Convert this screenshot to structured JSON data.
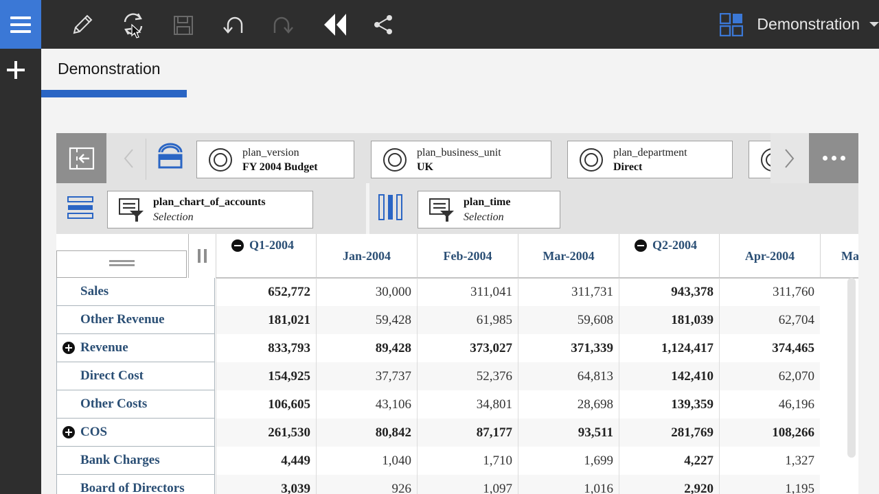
{
  "app": {
    "title": "Demonstration",
    "toolbar_icons": [
      "pencil-icon",
      "refresh-icon",
      "save-icon",
      "undo-icon",
      "redo-icon",
      "rewind-icon",
      "share-icon"
    ],
    "accent_color": "#3b78d6"
  },
  "page": {
    "tab_label": "Demonstration"
  },
  "filters": [
    {
      "name": "plan_version",
      "value": "FY 2004 Budget"
    },
    {
      "name": "plan_business_unit",
      "value": "UK"
    },
    {
      "name": "plan_department",
      "value": "Direct"
    }
  ],
  "rows_dimension": {
    "name": "plan_chart_of_accounts",
    "value": "Selection"
  },
  "columns_dimension": {
    "name": "plan_time",
    "value": "Selection"
  },
  "columns": [
    "Q1-2004",
    "Jan-2004",
    "Feb-2004",
    "Mar-2004",
    "Q2-2004",
    "Apr-2004",
    "Ma"
  ],
  "rows": [
    {
      "label": "Sales",
      "values": [
        "652,772",
        "30,000",
        "311,041",
        "311,731",
        "943,378",
        "311,760"
      ]
    },
    {
      "label": "Other Revenue",
      "values": [
        "181,021",
        "59,428",
        "61,985",
        "59,608",
        "181,039",
        "62,704"
      ]
    },
    {
      "label": "Revenue",
      "values": [
        "833,793",
        "89,428",
        "373,027",
        "371,339",
        "1,124,417",
        "374,465"
      ]
    },
    {
      "label": "Direct Cost",
      "values": [
        "154,925",
        "37,737",
        "52,376",
        "64,813",
        "142,410",
        "62,070"
      ]
    },
    {
      "label": "Other Costs",
      "values": [
        "106,605",
        "43,106",
        "34,801",
        "28,698",
        "139,359",
        "46,196"
      ]
    },
    {
      "label": "COS",
      "values": [
        "261,530",
        "80,842",
        "87,177",
        "93,511",
        "281,769",
        "108,266"
      ]
    },
    {
      "label": "Bank Charges",
      "values": [
        "4,449",
        "1,040",
        "1,710",
        "1,699",
        "4,227",
        "1,327"
      ]
    },
    {
      "label": "Board of Directors",
      "values": [
        "3,039",
        "926",
        "1,097",
        "1,016",
        "2,920",
        "1,195"
      ]
    }
  ]
}
